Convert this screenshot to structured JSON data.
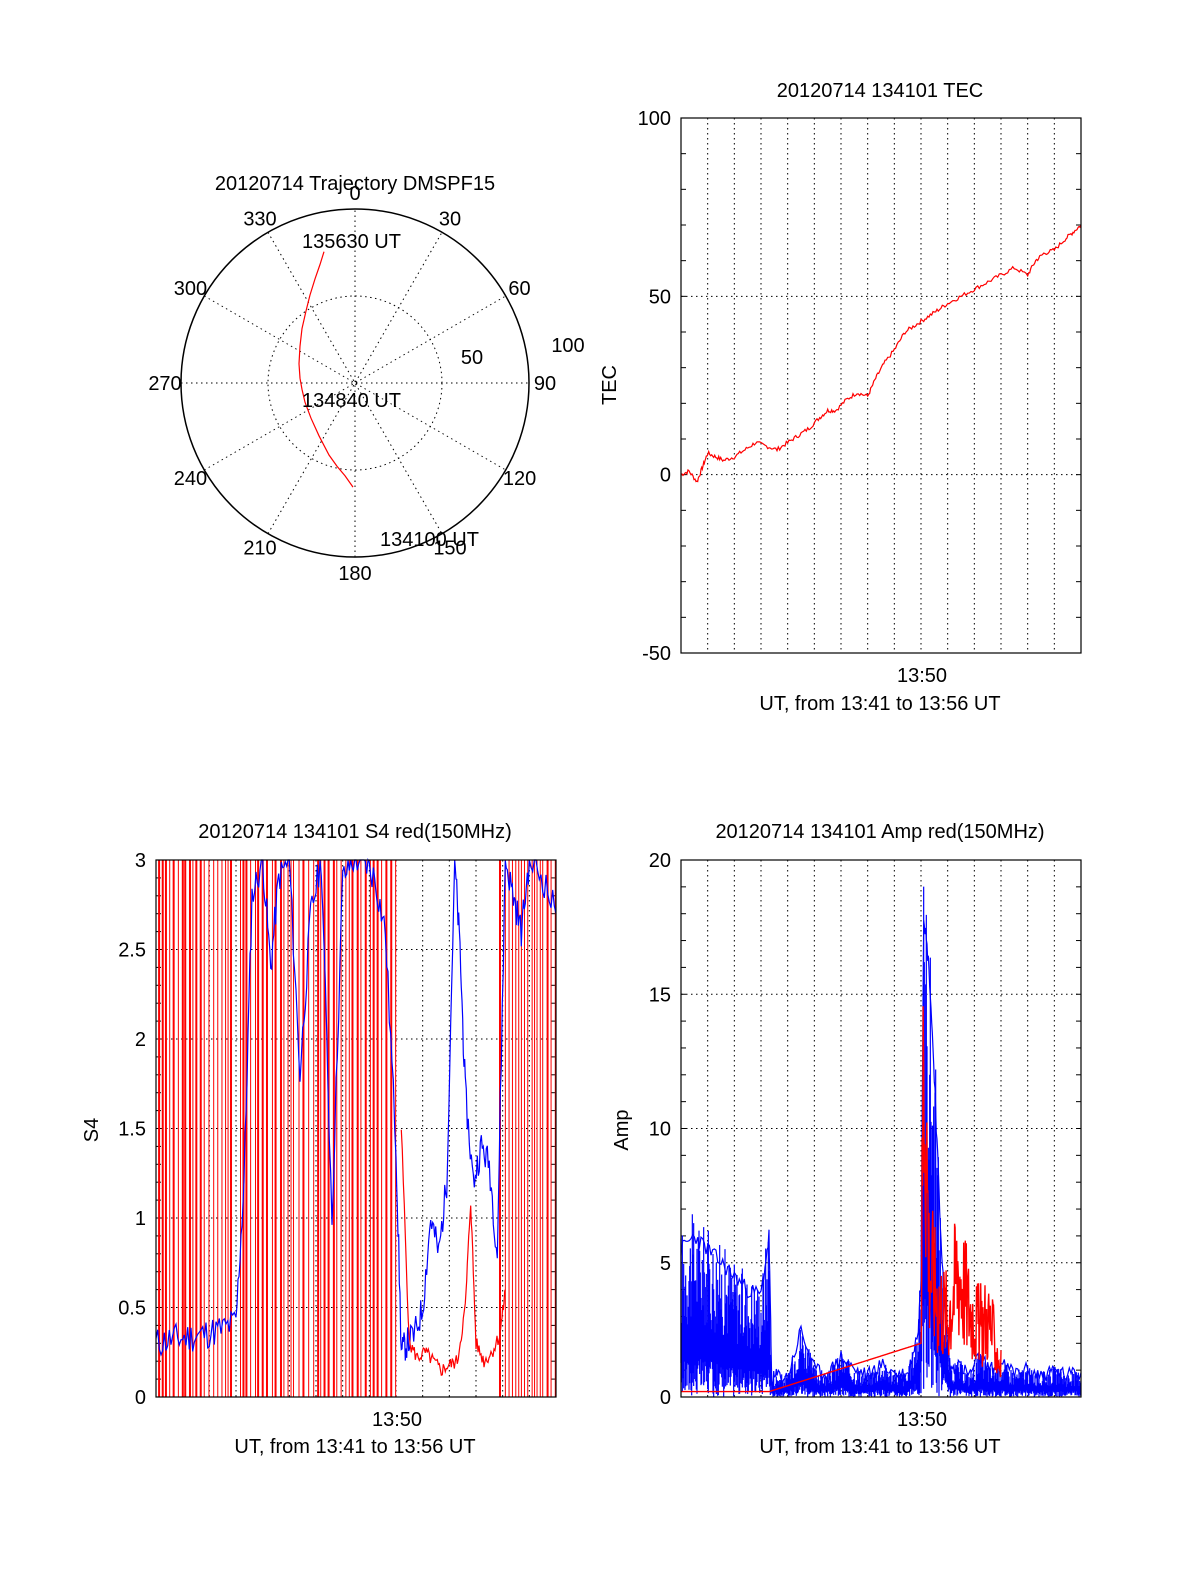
{
  "colors": {
    "red": "#ff0000",
    "blue": "#0000ff",
    "axis": "#000000",
    "background": "#ffffff"
  },
  "chart_data": [
    {
      "type": "polar",
      "title": "20120714 Trajectory DMSPF15",
      "angle_ticks": [
        "0",
        "30",
        "60",
        "90",
        "120",
        "150",
        "180",
        "210",
        "240",
        "270",
        "300",
        "330"
      ],
      "radial_ticks": [
        "50",
        "100"
      ],
      "rlim": [
        0,
        100
      ],
      "grid": true,
      "series": [
        {
          "color": "red",
          "points": [
            [
              217,
              82
            ],
            [
              213,
              74
            ],
            [
              208,
              65
            ],
            [
              203,
              55
            ],
            [
              199,
              45
            ],
            [
              195,
              34
            ],
            [
              193,
              23
            ],
            [
              192,
              12
            ],
            [
              193,
              3
            ],
            [
              195,
              -4
            ],
            [
              198,
              -12
            ],
            [
              204,
              -22
            ],
            [
              212,
              -33
            ],
            [
              222,
              -45
            ],
            [
              230,
              -52
            ],
            [
              238,
              -58
            ],
            [
              246,
              -65
            ]
          ]
        }
      ],
      "annotations": [
        "134100 UT",
        "134840 UT",
        "135630 UT"
      ]
    },
    {
      "type": "line",
      "title": "20120714 134101 TEC",
      "ylabel": "TEC",
      "xlabel": "UT, from 13:41 to 13:56 UT",
      "x_tick_labels": [
        "13:50"
      ],
      "y_tick_labels": [
        "-50",
        "0",
        "50",
        "100"
      ],
      "xlim": [
        "13:41",
        "13:56"
      ],
      "ylim": [
        -50,
        100
      ],
      "grid": true,
      "series": [
        {
          "color": "red",
          "x": [
            0,
            0.3,
            0.6,
            0.8,
            1.0,
            1.3,
            1.6,
            2.0,
            2.4,
            2.8,
            3.2,
            3.6,
            4.0,
            4.4,
            4.8,
            5.2,
            5.5,
            5.8,
            6.2,
            6.6,
            7.0,
            7.3,
            7.6,
            8.0,
            8.4,
            8.8,
            9.2,
            9.6,
            10.0,
            10.5,
            11.0,
            11.5,
            12.0,
            12.5,
            13.0,
            13.3,
            13.6,
            14.0,
            14.4,
            14.7,
            15.0
          ],
          "y": [
            0,
            1,
            -2,
            2,
            6,
            5,
            4,
            5,
            7,
            9,
            8,
            7,
            9,
            11,
            13,
            16,
            18,
            18,
            21,
            23,
            22,
            27,
            31,
            35,
            40,
            42,
            44,
            46,
            48,
            50,
            52,
            54,
            56,
            58,
            56,
            60,
            62,
            63,
            66,
            68,
            70
          ]
        }
      ]
    },
    {
      "type": "line",
      "title": "20120714 134101 S4 red(150MHz)",
      "ylabel": "S4",
      "xlabel": "UT, from 13:41 to 13:56 UT",
      "x_tick_labels": [
        "13:50"
      ],
      "y_tick_labels": [
        "0",
        "0.5",
        "1",
        "1.5",
        "2",
        "2.5",
        "3"
      ],
      "xlim": [
        "13:41",
        "13:56"
      ],
      "ylim": [
        0,
        3
      ],
      "grid": true,
      "series": [
        {
          "color": "blue",
          "x": [
            0,
            0.5,
            1.0,
            1.5,
            2.0,
            2.5,
            3.0,
            3.3,
            3.6,
            4.0,
            4.3,
            4.6,
            5.0,
            5.4,
            5.8,
            6.2,
            6.6,
            7.0,
            7.4,
            7.8,
            8.2,
            8.6,
            9.0,
            9.2,
            9.4,
            9.7,
            10.0,
            10.3,
            10.6,
            10.9,
            11.2,
            11.4,
            11.6,
            11.9,
            12.2,
            12.5,
            12.8,
            13.1,
            13.4,
            13.7,
            14.0,
            14.5,
            15.0
          ],
          "y": [
            0.3,
            0.32,
            0.33,
            0.34,
            0.36,
            0.38,
            0.42,
            1.2,
            2.8,
            3.0,
            2.4,
            2.9,
            3.0,
            1.8,
            2.7,
            3.0,
            1.0,
            2.9,
            3.0,
            3.0,
            2.9,
            2.6,
            1.4,
            0.25,
            0.3,
            0.35,
            0.5,
            1.0,
            0.8,
            1.2,
            3.0,
            2.5,
            1.7,
            1.2,
            1.4,
            1.3,
            0.8,
            3.0,
            2.8,
            2.6,
            3.0,
            2.9,
            2.7
          ]
        },
        {
          "color": "red",
          "x": [
            9.2,
            9.5,
            9.8,
            10.1,
            10.4,
            10.7,
            11.0,
            11.3,
            11.6,
            11.8,
            12.0,
            12.3,
            12.6,
            12.9,
            13.1
          ],
          "y": [
            1.5,
            0.3,
            0.22,
            0.25,
            0.2,
            0.15,
            0.18,
            0.2,
            0.5,
            1.1,
            0.3,
            0.2,
            0.25,
            0.35,
            0.6
          ]
        }
      ]
    },
    {
      "type": "line",
      "title": "20120714 134101 Amp red(150MHz)",
      "ylabel": "Amp",
      "xlabel": "UT, from 13:41 to 13:56 UT",
      "x_tick_labels": [
        "13:50"
      ],
      "y_tick_labels": [
        "0",
        "5",
        "10",
        "15",
        "20"
      ],
      "xlim": [
        "13:41",
        "13:56"
      ],
      "ylim": [
        0,
        20
      ],
      "grid": true,
      "series": [
        {
          "color": "blue",
          "x": [
            0,
            0.5,
            1.0,
            1.5,
            2.0,
            2.5,
            3.0,
            3.3,
            3.4,
            3.6,
            4.0,
            4.5,
            5.0,
            5.5,
            6.0,
            6.5,
            7.0,
            7.5,
            8.0,
            8.5,
            8.9,
            9.0,
            9.1,
            9.3,
            9.5,
            9.7,
            9.9,
            10.1,
            10.4,
            10.8,
            11.2,
            11.6,
            12.0,
            12.5,
            13.0,
            13.5,
            14.0,
            14.5,
            15.0
          ],
          "y": [
            5.5,
            6.0,
            5.5,
            5.0,
            4.5,
            4.0,
            3.8,
            6.0,
            0.6,
            0.8,
            0.7,
            2.5,
            1.0,
            0.8,
            1.5,
            1.0,
            0.8,
            1.2,
            0.9,
            0.8,
            2.5,
            4.5,
            18,
            16,
            12,
            7,
            3,
            1.0,
            1.2,
            0.8,
            1.5,
            1.0,
            1.2,
            0.9,
            1.0,
            0.8,
            1.0,
            0.8,
            0.9
          ]
        },
        {
          "color": "red",
          "x": [
            0,
            1.0,
            2.0,
            3.0,
            3.3,
            9.0,
            9.1,
            9.3,
            9.6,
            10.0,
            10.4,
            10.8,
            11.2,
            11.5,
            11.8,
            12.0
          ],
          "y": [
            0.2,
            0.2,
            0.2,
            0.2,
            0.2,
            2.0,
            19.5,
            7.0,
            5.0,
            4.0,
            6.5,
            4.5,
            3.5,
            4.0,
            2.5,
            1.5
          ]
        }
      ]
    }
  ]
}
